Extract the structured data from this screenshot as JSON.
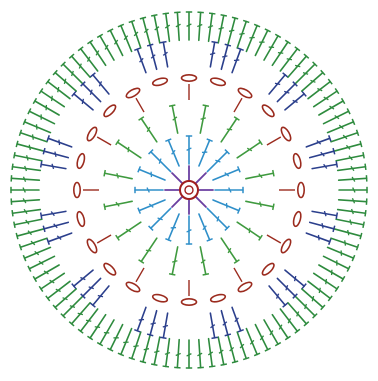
{
  "diagram": {
    "type": "crochet-chart-round",
    "colors": {
      "outer_trebles": "#2e8b3e",
      "clusters_dark": "#2b3f8c",
      "chain_loops": "#9b2b1e",
      "mid_trebles": "#3f9a3f",
      "inner_trebles": "#2f8fc9",
      "center_posts": "#6a3fa0",
      "center_ring": "#a11f1f"
    },
    "rounds": [
      {
        "name": "center-ring",
        "count": 1
      },
      {
        "name": "inner-posts",
        "count": 8
      },
      {
        "name": "inner-trebles",
        "count": 16
      },
      {
        "name": "mid-trebles",
        "count": 16
      },
      {
        "name": "chain-loops",
        "count": 24
      },
      {
        "name": "clusters",
        "count": 12
      },
      {
        "name": "outer-trebles",
        "count": 96
      }
    ]
  }
}
